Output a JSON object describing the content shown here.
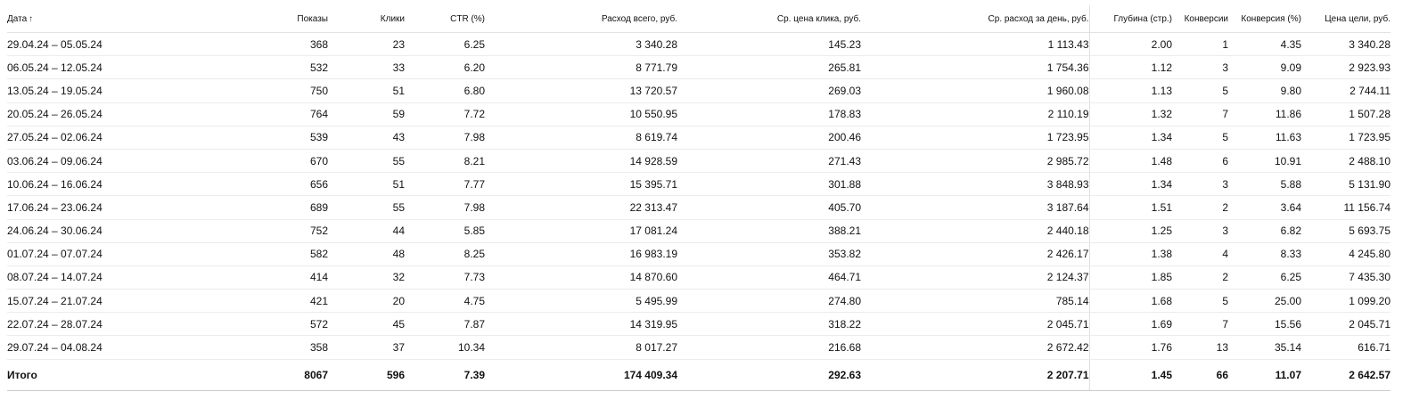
{
  "table": {
    "columns": [
      {
        "key": "date",
        "label": "Дата"
      },
      {
        "key": "shows",
        "label": "Показы"
      },
      {
        "key": "clicks",
        "label": "Клики"
      },
      {
        "key": "ctr",
        "label": "CTR (%)"
      },
      {
        "key": "spend",
        "label": "Расход всего, руб."
      },
      {
        "key": "avg_cpc",
        "label": "Ср. цена клика, руб."
      },
      {
        "key": "avg_daily",
        "label": "Ср. расход за день, руб."
      },
      {
        "key": "depth",
        "label": "Глубина (стр.)"
      },
      {
        "key": "conversions",
        "label": "Конверсии"
      },
      {
        "key": "conv_rate",
        "label": "Конверсия (%)"
      },
      {
        "key": "goal_cost",
        "label": "Цена цели, руб."
      }
    ],
    "sort_icon": "↑",
    "sort_icon_name": "sort-ascending-icon",
    "rows": [
      [
        "29.04.24 – 05.05.24",
        "368",
        "23",
        "6.25",
        "3 340.28",
        "145.23",
        "1 113.43",
        "2.00",
        "1",
        "4.35",
        "3 340.28"
      ],
      [
        "06.05.24 – 12.05.24",
        "532",
        "33",
        "6.20",
        "8 771.79",
        "265.81",
        "1 754.36",
        "1.12",
        "3",
        "9.09",
        "2 923.93"
      ],
      [
        "13.05.24 – 19.05.24",
        "750",
        "51",
        "6.80",
        "13 720.57",
        "269.03",
        "1 960.08",
        "1.13",
        "5",
        "9.80",
        "2 744.11"
      ],
      [
        "20.05.24 – 26.05.24",
        "764",
        "59",
        "7.72",
        "10 550.95",
        "178.83",
        "2 110.19",
        "1.32",
        "7",
        "11.86",
        "1 507.28"
      ],
      [
        "27.05.24 – 02.06.24",
        "539",
        "43",
        "7.98",
        "8 619.74",
        "200.46",
        "1 723.95",
        "1.34",
        "5",
        "11.63",
        "1 723.95"
      ],
      [
        "03.06.24 – 09.06.24",
        "670",
        "55",
        "8.21",
        "14 928.59",
        "271.43",
        "2 985.72",
        "1.48",
        "6",
        "10.91",
        "2 488.10"
      ],
      [
        "10.06.24 – 16.06.24",
        "656",
        "51",
        "7.77",
        "15 395.71",
        "301.88",
        "3 848.93",
        "1.34",
        "3",
        "5.88",
        "5 131.90"
      ],
      [
        "17.06.24 – 23.06.24",
        "689",
        "55",
        "7.98",
        "22 313.47",
        "405.70",
        "3 187.64",
        "1.51",
        "2",
        "3.64",
        "11 156.74"
      ],
      [
        "24.06.24 – 30.06.24",
        "752",
        "44",
        "5.85",
        "17 081.24",
        "388.21",
        "2 440.18",
        "1.25",
        "3",
        "6.82",
        "5 693.75"
      ],
      [
        "01.07.24 – 07.07.24",
        "582",
        "48",
        "8.25",
        "16 983.19",
        "353.82",
        "2 426.17",
        "1.38",
        "4",
        "8.33",
        "4 245.80"
      ],
      [
        "08.07.24 – 14.07.24",
        "414",
        "32",
        "7.73",
        "14 870.60",
        "464.71",
        "2 124.37",
        "1.85",
        "2",
        "6.25",
        "7 435.30"
      ],
      [
        "15.07.24 – 21.07.24",
        "421",
        "20",
        "4.75",
        "5 495.99",
        "274.80",
        "785.14",
        "1.68",
        "5",
        "25.00",
        "1 099.20"
      ],
      [
        "22.07.24 – 28.07.24",
        "572",
        "45",
        "7.87",
        "14 319.95",
        "318.22",
        "2 045.71",
        "1.69",
        "7",
        "15.56",
        "2 045.71"
      ],
      [
        "29.07.24 – 04.08.24",
        "358",
        "37",
        "10.34",
        "8 017.27",
        "216.68",
        "2 672.42",
        "1.76",
        "13",
        "35.14",
        "616.71"
      ]
    ],
    "total": [
      "Итого",
      "8067",
      "596",
      "7.39",
      "174 409.34",
      "292.63",
      "2 207.71",
      "1.45",
      "66",
      "11.07",
      "2 642.57"
    ]
  }
}
